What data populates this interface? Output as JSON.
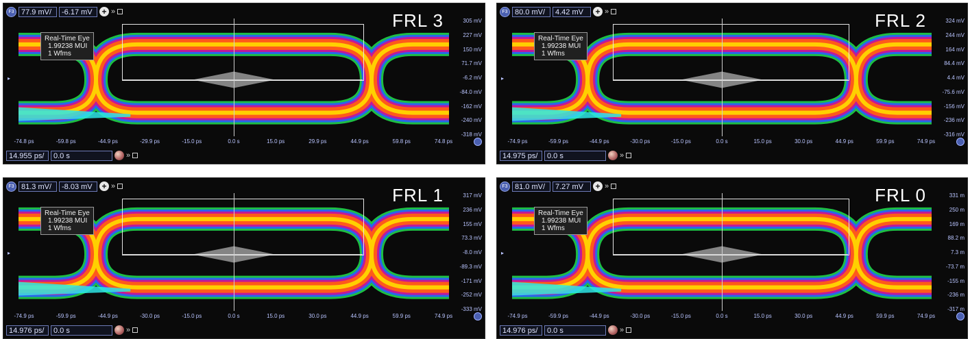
{
  "panels": [
    {
      "label": "FRL 3",
      "volts_per_div": "77.9 mV/",
      "offset": "-6.17 mV",
      "time_per_div": "14.955 ps/",
      "time_offset": "0.0 s",
      "info_title": "Real-Time Eye",
      "info_mui": "1.99238 MUI",
      "info_wfms": "1 Wfms",
      "y_ticks": [
        "305 mV",
        "227 mV",
        "150 mV",
        "71.7 mV",
        "-6.2 mV",
        "-84.0 mV",
        "-162 mV",
        "-240 mV",
        "-318 mV"
      ],
      "x_ticks": [
        "-74.8 ps",
        "-59.8 ps",
        "-44.9 ps",
        "-29.9 ps",
        "-15.0 ps",
        "0.0 s",
        "15.0 ps",
        "29.9 ps",
        "44.9 ps",
        "59.8 ps",
        "74.8 ps"
      ]
    },
    {
      "label": "FRL 2",
      "volts_per_div": "80.0 mV/",
      "offset": "4.42 mV",
      "time_per_div": "14.975 ps/",
      "time_offset": "0.0 s",
      "info_title": "Real-Time Eye",
      "info_mui": "1.99238 MUI",
      "info_wfms": "1 Wfms",
      "y_ticks": [
        "324 mV",
        "244 mV",
        "164 mV",
        "84.4 mV",
        "4.4 mV",
        "-75.6 mV",
        "-156 mV",
        "-236 mV",
        "-316 mV"
      ],
      "x_ticks": [
        "-74.9 ps",
        "-59.9 ps",
        "-44.9 ps",
        "-30.0 ps",
        "-15.0 ps",
        "0.0 s",
        "15.0 ps",
        "30.0 ps",
        "44.9 ps",
        "59.9 ps",
        "74.9 ps"
      ]
    },
    {
      "label": "FRL 1",
      "volts_per_div": "81.3 mV/",
      "offset": "-8.03 mV",
      "time_per_div": "14.976 ps/",
      "time_offset": "0.0 s",
      "info_title": "Real-Time Eye",
      "info_mui": "1.99238 MUI",
      "info_wfms": "1 Wfms",
      "y_ticks": [
        "317 mV",
        "236 mV",
        "155 mV",
        "73.3 mV",
        "-8.0 mV",
        "-89.3 mV",
        "-171 mV",
        "-252 mV",
        "-333 mV"
      ],
      "x_ticks": [
        "-74.9 ps",
        "-59.9 ps",
        "-44.9 ps",
        "-30.0 ps",
        "-15.0 ps",
        "0.0 s",
        "15.0 ps",
        "30.0 ps",
        "44.9 ps",
        "59.9 ps",
        "74.9 ps"
      ]
    },
    {
      "label": "FRL 0",
      "volts_per_div": "81.0 mV/",
      "offset": "7.27 mV",
      "time_per_div": "14.976 ps/",
      "time_offset": "0.0 s",
      "info_title": "Real-Time Eye",
      "info_mui": "1.99238 MUI",
      "info_wfms": "1 Wfms",
      "y_ticks": [
        "331 m",
        "250 m",
        "169 m",
        "88.2 m",
        "7.3 m",
        "-73.7 m",
        "-155 m",
        "-236 m",
        "-317 m"
      ],
      "x_ticks": [
        "-74.9 ps",
        "-59.9 ps",
        "-44.9 ps",
        "-30.0 ps",
        "-15.0 ps",
        "0.0 s",
        "15.0 ps",
        "30.0 ps",
        "44.9 ps",
        "59.9 ps",
        "74.9 ps"
      ]
    }
  ],
  "icons": {
    "channel": "F3-channel-icon",
    "add": "plus-icon",
    "more": "double-chevron-icon",
    "window": "square-icon",
    "ball": "timebase-ball-icon"
  },
  "colors": {
    "axis_text": "#b9c4ff",
    "eye_core": "#ffd000",
    "eye_mid": "#ff5a1a",
    "eye_edge": "#c0189a",
    "eye_outer": "#2a5cff",
    "eye_fringe": "#1fd14a",
    "trace_cyan": "#2ee6e6"
  },
  "channel_badge": "F3"
}
